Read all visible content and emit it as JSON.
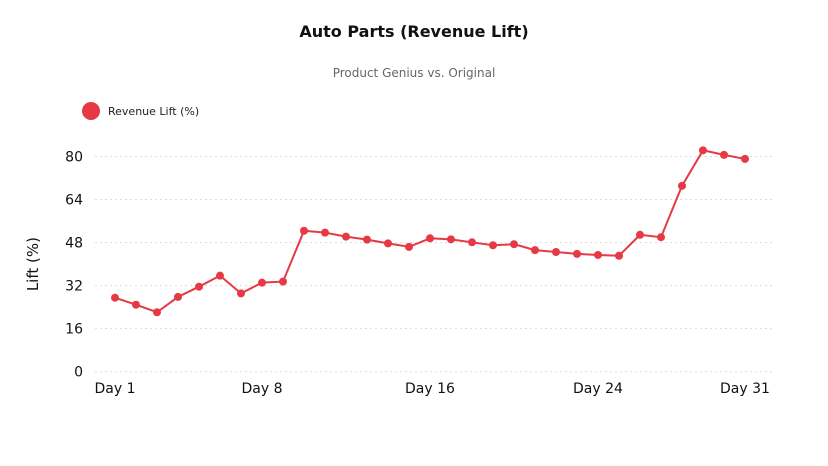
{
  "chart_data": {
    "type": "line",
    "title": "Auto Parts (Revenue Lift)",
    "subtitle": "Product Genius vs. Original",
    "xlabel": "",
    "ylabel": "Lift (%)",
    "ylim": [
      0,
      80
    ],
    "yticks": [
      0,
      16,
      32,
      48,
      64,
      80
    ],
    "xticks": [
      {
        "day": 1,
        "label": "Day 1"
      },
      {
        "day": 8,
        "label": "Day 8"
      },
      {
        "day": 16,
        "label": "Day 16"
      },
      {
        "day": 24,
        "label": "Day 24"
      },
      {
        "day": 31,
        "label": "Day 31"
      }
    ],
    "grid": true,
    "legend_position": "top-left",
    "series": [
      {
        "name": "Revenue Lift (%)",
        "color": "#e63946",
        "x": [
          1,
          2,
          3,
          4,
          5,
          6,
          7,
          8,
          9,
          10,
          11,
          12,
          13,
          14,
          15,
          16,
          17,
          18,
          19,
          20,
          21,
          22,
          23,
          24,
          25,
          26,
          27,
          28,
          29,
          30,
          31
        ],
        "values": [
          27.5,
          24.9,
          22.1,
          27.8,
          31.6,
          35.7,
          29.1,
          33.1,
          33.5,
          52.4,
          51.7,
          50.2,
          49.1,
          47.7,
          46.4,
          49.6,
          49.2,
          48.1,
          47.0,
          47.4,
          45.2,
          44.5,
          43.8,
          43.4,
          43.1,
          50.9,
          50.0,
          69.1,
          82.3,
          80.6,
          79.1
        ]
      }
    ]
  }
}
